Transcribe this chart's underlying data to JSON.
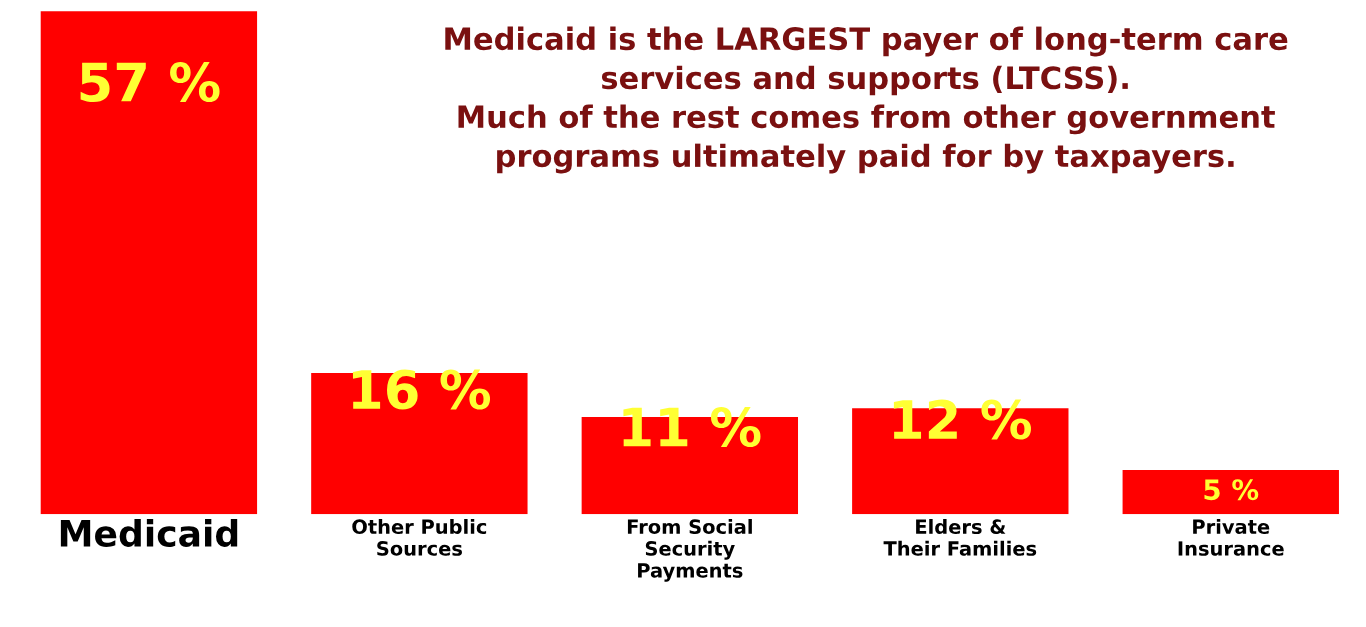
{
  "chart_data": {
    "type": "bar",
    "categories": [
      "Medicaid",
      "Other Public\nSources",
      "From Social\nSecurity\nPayments",
      "Elders &\nTheir Families",
      "Private\nInsurance"
    ],
    "values": [
      57,
      16,
      11,
      12,
      5
    ],
    "value_labels": [
      "57 %",
      "16 %",
      "11 %",
      "12 %",
      "5 %"
    ],
    "color": "#ff0000",
    "annotations": [
      "Medicaid is the LARGEST payer of long-term care\nservices and supports (LTCSS).\nMuch of the rest comes from other government\nprograms ultimately paid for by taxpayers."
    ],
    "tick_labels": "x",
    "grid": false,
    "legend": false
  }
}
